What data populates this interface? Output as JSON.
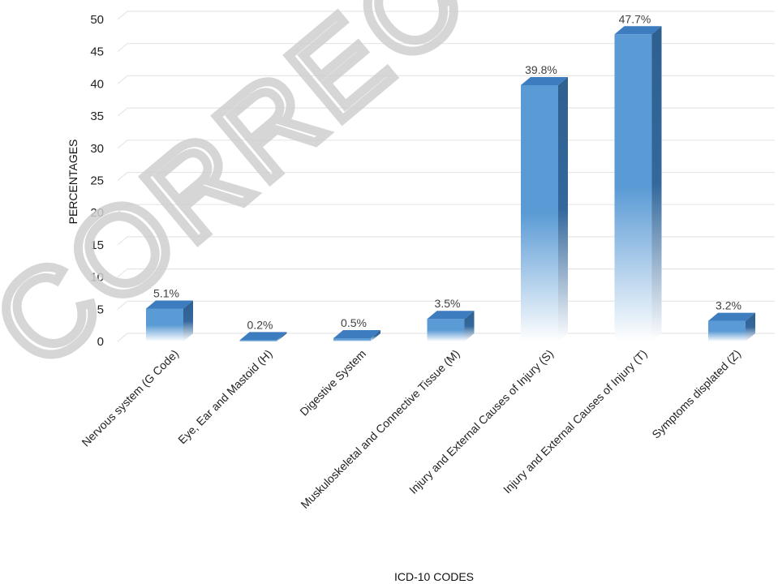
{
  "chart_data": {
    "type": "bar",
    "categories": [
      "Nervous system (G Code)",
      "Eye, Ear and Mastoid (H)",
      "Digestive System",
      "Muskuloskeletal and Connective Tissue (M)",
      "Injury and External Causes of Injury (S)",
      "Injury and External Causes of Injury (T)",
      "Symptoms displated (Z)"
    ],
    "values": [
      5.1,
      0.2,
      0.5,
      3.5,
      39.8,
      47.7,
      3.2
    ],
    "data_labels": [
      "5.1%",
      "0.2%",
      "0.5%",
      "3.5%",
      "39.8%",
      "47.7%",
      "3.2%"
    ],
    "xlabel": "ICD-10 CODES",
    "ylabel": "PERCENTAGES",
    "ylim": [
      0,
      50
    ],
    "yticks": [
      "0",
      "5",
      "10",
      "15",
      "20",
      "25",
      "30",
      "35",
      "40",
      "45",
      "50"
    ],
    "grid": true,
    "legend": "none",
    "style": "3d-column-gradient",
    "colors": {
      "bar_front": "#5b9bd5",
      "bar_side": "#2e5f8f",
      "bar_top": "#3d7cbf",
      "grid": "#e6e6e6"
    }
  },
  "watermark": "CORRECTED"
}
